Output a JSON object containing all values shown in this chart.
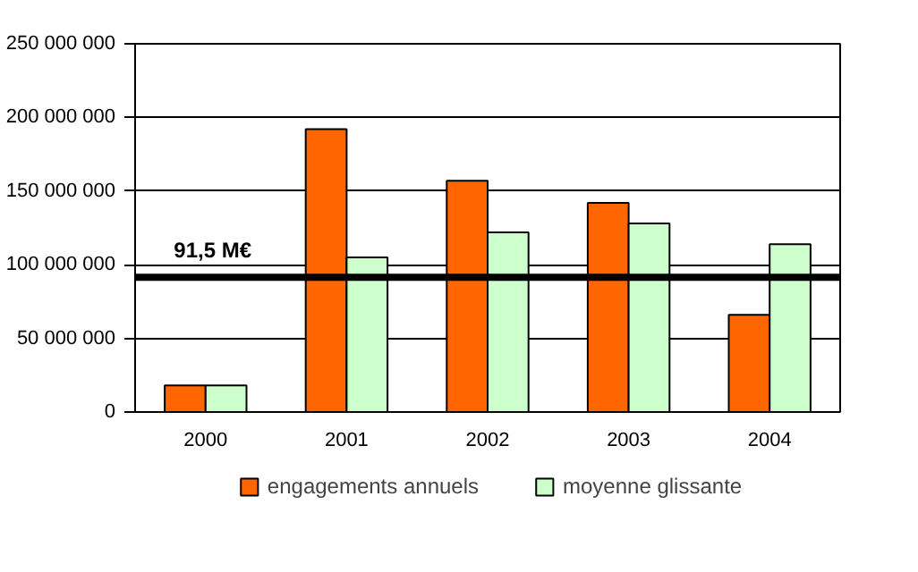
{
  "chart_data": {
    "type": "bar",
    "categories": [
      "2000",
      "2001",
      "2002",
      "2003",
      "2004"
    ],
    "series": [
      {
        "name": "engagements annuels",
        "color": "#ff6600",
        "values": [
          18000000,
          192000000,
          157000000,
          142000000,
          66000000
        ]
      },
      {
        "name": "moyenne glissante",
        "color": "#ccffcc",
        "values": [
          18000000,
          105000000,
          122000000,
          128000000,
          114000000
        ]
      }
    ],
    "ylim": [
      0,
      250000000
    ],
    "yticks": [
      {
        "value": 0,
        "label": "0"
      },
      {
        "value": 50000000,
        "label": "50 000 000"
      },
      {
        "value": 100000000,
        "label": "100 000 000"
      },
      {
        "value": 150000000,
        "label": "150 000 000"
      },
      {
        "value": 200000000,
        "label": "200 000 000"
      },
      {
        "value": 250000000,
        "label": "250 000 000"
      }
    ],
    "ref_lines": [
      {
        "axis": "y",
        "value": 91500000,
        "label": "91,5 M€",
        "color": "#000000"
      }
    ],
    "grid": "y",
    "legend": "bottom"
  }
}
